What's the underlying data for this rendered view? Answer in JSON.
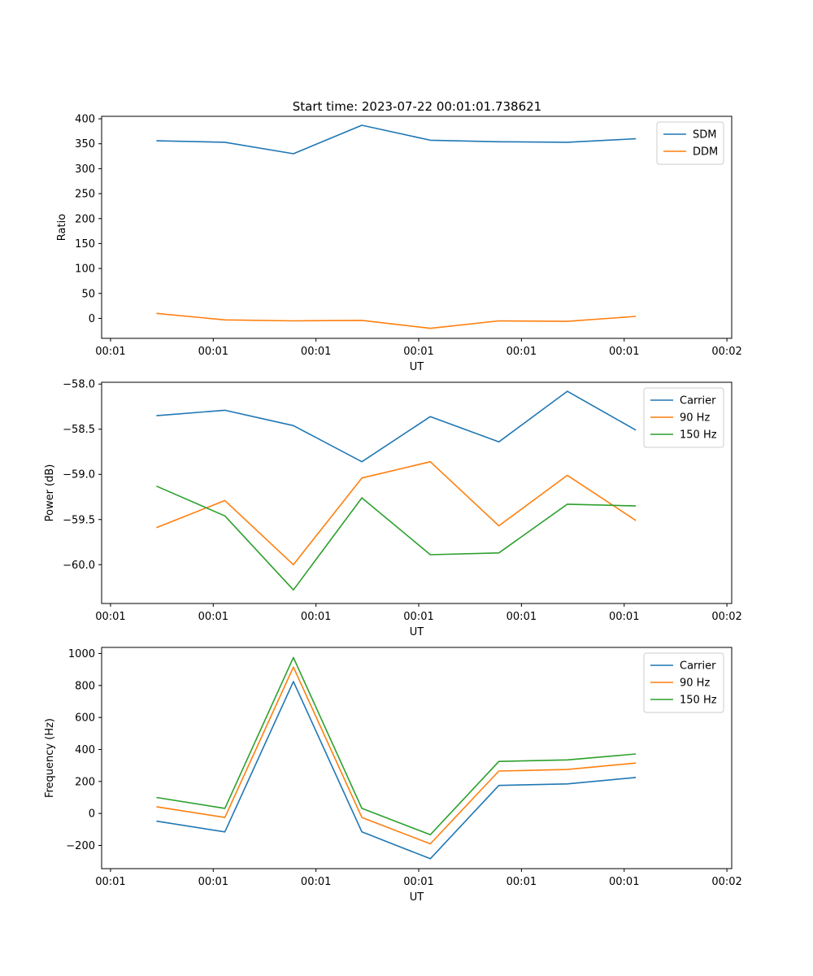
{
  "figure_title": "Start time: 2023-07-22 00:01:01.738621",
  "colors": {
    "blue": "#1f77b4",
    "orange": "#ff7f0e",
    "green": "#2ca02c"
  },
  "chart_data": [
    {
      "type": "line",
      "title": "Start time: 2023-07-22 00:01:01.738621",
      "xlabel": "UT",
      "ylabel": "Ratio",
      "x": [
        1,
        2,
        3,
        4,
        5,
        6,
        7,
        8
      ],
      "xlim": [
        0.2,
        9.4
      ],
      "xticks": [
        0.33,
        1.83,
        3.33,
        4.83,
        6.33,
        7.83,
        9.33
      ],
      "xtick_labels": [
        "00:01",
        "00:01",
        "00:01",
        "00:01",
        "00:01",
        "00:01",
        "00:02"
      ],
      "ylim": [
        -40,
        405
      ],
      "yticks": [
        0,
        50,
        100,
        150,
        200,
        250,
        300,
        350,
        400
      ],
      "ytick_labels": [
        "0",
        "50",
        "100",
        "150",
        "200",
        "250",
        "300",
        "350",
        "400"
      ],
      "legend_position": "top-right",
      "series": [
        {
          "name": "SDM",
          "color": "#1f77b4",
          "values": [
            356,
            353,
            330,
            387,
            357,
            354,
            353,
            360
          ]
        },
        {
          "name": "DDM",
          "color": "#ff7f0e",
          "values": [
            10,
            -3,
            -5,
            -4,
            -20,
            -5,
            -6,
            4
          ]
        }
      ]
    },
    {
      "type": "line",
      "title": "",
      "xlabel": "UT",
      "ylabel": "Power (dB)",
      "x": [
        1,
        2,
        3,
        4,
        5,
        6,
        7,
        8
      ],
      "xlim": [
        0.2,
        9.4
      ],
      "xticks": [
        0.33,
        1.83,
        3.33,
        4.83,
        6.33,
        7.83,
        9.33
      ],
      "xtick_labels": [
        "00:01",
        "00:01",
        "00:01",
        "00:01",
        "00:01",
        "00:01",
        "00:02"
      ],
      "ylim": [
        -60.43,
        -57.98
      ],
      "yticks": [
        -60.0,
        -59.5,
        -59.0,
        -58.5,
        -58.0
      ],
      "ytick_labels": [
        "−60.0",
        "−59.5",
        "−59.0",
        "−58.5",
        "−58.0"
      ],
      "legend_position": "top-right",
      "series": [
        {
          "name": "Carrier",
          "color": "#1f77b4",
          "values": [
            -58.35,
            -58.29,
            -58.46,
            -58.86,
            -58.36,
            -58.64,
            -58.08,
            -58.51
          ]
        },
        {
          "name": "90 Hz",
          "color": "#ff7f0e",
          "values": [
            -59.59,
            -59.29,
            -60.0,
            -59.04,
            -58.86,
            -59.57,
            -59.01,
            -59.51
          ]
        },
        {
          "name": "150 Hz",
          "color": "#2ca02c",
          "values": [
            -59.13,
            -59.46,
            -60.28,
            -59.26,
            -59.89,
            -59.87,
            -59.33,
            -59.35
          ]
        }
      ]
    },
    {
      "type": "line",
      "title": "",
      "xlabel": "UT",
      "ylabel": "Frequency (Hz)",
      "x": [
        1,
        2,
        3,
        4,
        5,
        6,
        7,
        8
      ],
      "xlim": [
        0.2,
        9.4
      ],
      "xticks": [
        0.33,
        1.83,
        3.33,
        4.83,
        6.33,
        7.83,
        9.33
      ],
      "xtick_labels": [
        "00:01",
        "00:01",
        "00:01",
        "00:01",
        "00:01",
        "00:01",
        "00:02"
      ],
      "ylim": [
        -345,
        1038
      ],
      "yticks": [
        -200,
        0,
        200,
        400,
        600,
        800,
        1000
      ],
      "ytick_labels": [
        "−200",
        "0",
        "200",
        "400",
        "600",
        "800",
        "1000"
      ],
      "legend_position": "top-right",
      "series": [
        {
          "name": "Carrier",
          "color": "#1f77b4",
          "values": [
            -48,
            -115,
            825,
            -115,
            -283,
            175,
            185,
            225
          ]
        },
        {
          "name": "90 Hz",
          "color": "#ff7f0e",
          "values": [
            42,
            -25,
            915,
            -25,
            -190,
            265,
            275,
            315
          ]
        },
        {
          "name": "150 Hz",
          "color": "#2ca02c",
          "values": [
            100,
            32,
            975,
            32,
            -133,
            325,
            335,
            372
          ]
        }
      ]
    }
  ]
}
